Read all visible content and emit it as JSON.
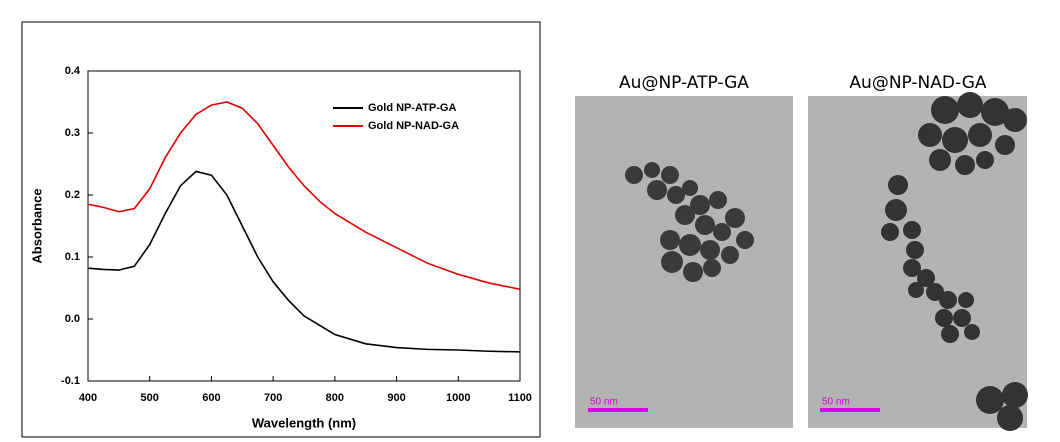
{
  "chart_data": {
    "type": "line",
    "x_label": "Wavelength (nm)",
    "y_label": "Absorbance",
    "x": [
      400,
      425,
      450,
      475,
      500,
      525,
      550,
      575,
      600,
      625,
      650,
      675,
      700,
      725,
      750,
      775,
      800,
      850,
      900,
      950,
      1000,
      1050,
      1100
    ],
    "series": [
      {
        "name": "Gold NP-ATP-GA",
        "color": "#000000",
        "values": [
          0.082,
          0.08,
          0.079,
          0.085,
          0.12,
          0.17,
          0.215,
          0.238,
          0.232,
          0.2,
          0.15,
          0.1,
          0.06,
          0.03,
          0.005,
          -0.01,
          -0.025,
          -0.04,
          -0.046,
          -0.049,
          -0.05,
          -0.052,
          -0.053
        ]
      },
      {
        "name": "Gold NP-NAD-GA",
        "color": "#e00000",
        "values": [
          0.185,
          0.18,
          0.173,
          0.178,
          0.21,
          0.26,
          0.3,
          0.33,
          0.345,
          0.35,
          0.34,
          0.315,
          0.28,
          0.245,
          0.215,
          0.19,
          0.17,
          0.14,
          0.115,
          0.09,
          0.072,
          0.058,
          0.048
        ]
      }
    ],
    "xlim": [
      400,
      1100
    ],
    "xticks": [
      400,
      500,
      600,
      700,
      800,
      900,
      1000,
      1100
    ],
    "ylim": [
      -0.1,
      0.4
    ],
    "yticks": [
      -0.1,
      {
        "value": 0,
        "label": "0.0"
      },
      0.1,
      0.2,
      0.3,
      0.4
    ],
    "legend": "upper right"
  },
  "images": [
    {
      "title": "Au@NP-ATP-GA",
      "scale_label": "50 nm"
    },
    {
      "title": "Au@NP-NAD-GA",
      "scale_label": "50 nm"
    }
  ]
}
